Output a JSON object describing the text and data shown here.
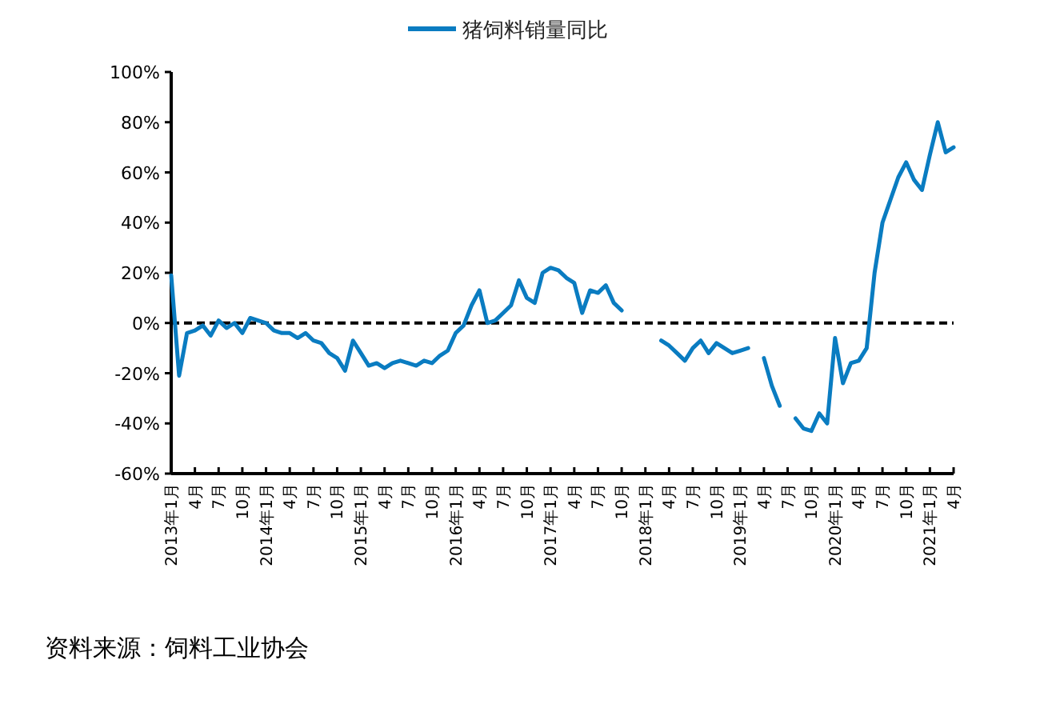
{
  "chart_data": {
    "type": "line",
    "categories": [
      "2013年1月",
      null,
      null,
      "4月",
      null,
      null,
      "7月",
      null,
      null,
      "10月",
      null,
      null,
      "2014年1月",
      null,
      null,
      "4月",
      null,
      null,
      "7月",
      null,
      null,
      "10月",
      null,
      null,
      "2015年1月",
      null,
      null,
      "4月",
      null,
      null,
      "7月",
      null,
      null,
      "10月",
      null,
      null,
      "2016年1月",
      null,
      null,
      "4月",
      null,
      null,
      "7月",
      null,
      null,
      "10月",
      null,
      null,
      "2017年1月",
      null,
      null,
      "4月",
      null,
      null,
      "7月",
      null,
      null,
      "10月",
      null,
      null,
      "2018年1月",
      null,
      null,
      "4月",
      null,
      null,
      "7月",
      null,
      null,
      "10月",
      null,
      null,
      "2019年1月",
      null,
      null,
      "4月",
      null,
      null,
      "7月",
      null,
      null,
      "10月",
      null,
      null,
      "2020年1月",
      null,
      null,
      "4月",
      null,
      null,
      "7月",
      null,
      null,
      "10月",
      null,
      null,
      "2021年1月",
      null,
      null,
      "4月"
    ],
    "series": [
      {
        "name": "猪饲料销量同比",
        "color": "#0a7cc1",
        "values": [
          19,
          -21,
          -4,
          -3,
          -1,
          -5,
          1,
          -2,
          0,
          -4,
          2,
          1,
          0,
          -3,
          -4,
          -4,
          -6,
          -4,
          -7,
          -8,
          -12,
          -14,
          -19,
          -7,
          -12,
          -17,
          -16,
          -18,
          -16,
          -15,
          -16,
          -17,
          -15,
          -16,
          -13,
          -11,
          -4,
          -1,
          7,
          13,
          0,
          1,
          4,
          7,
          17,
          10,
          8,
          20,
          22,
          21,
          18,
          16,
          4,
          13,
          12,
          15,
          8,
          5,
          null,
          null,
          null,
          null,
          -7,
          -9,
          -12,
          -15,
          -10,
          -7,
          -12,
          -8,
          -10,
          -12,
          -11,
          -10,
          null,
          -14,
          -25,
          -33,
          null,
          -38,
          -42,
          -43,
          -36,
          -40,
          -6,
          -24,
          -16,
          -15,
          -10,
          20,
          40,
          49,
          58,
          64,
          57,
          53,
          67,
          80,
          68,
          70
        ]
      }
    ],
    "ylim": [
      -60,
      100
    ],
    "yticks": [
      {
        "value": -60,
        "label": "-60%"
      },
      {
        "value": -40,
        "label": "-40%"
      },
      {
        "value": -20,
        "label": "-20%"
      },
      {
        "value": 0,
        "label": "0%"
      },
      {
        "value": 20,
        "label": "20%"
      },
      {
        "value": 40,
        "label": "40%"
      },
      {
        "value": 60,
        "label": "60%"
      },
      {
        "value": 80,
        "label": "80%"
      },
      {
        "value": 100,
        "label": "100%"
      }
    ],
    "ref_lines": [
      {
        "axis": "y",
        "value": 0,
        "color": "#000000",
        "line_style": "dashed"
      }
    ],
    "legend": "top",
    "annotations": [
      "资料来源：饲料工业协会"
    ]
  }
}
